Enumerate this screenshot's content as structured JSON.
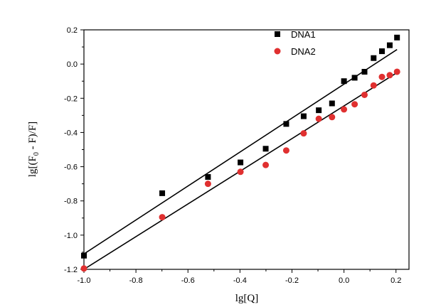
{
  "chart_data": {
    "type": "scatter",
    "xlabel": "lg[Q]",
    "ylabel": "lg[(F0 - F)/F]",
    "ylabel_parts": {
      "pre": "lg[(F",
      "sub": "0",
      "post": " - F)/F]"
    },
    "xlim": [
      -1.0,
      0.25
    ],
    "ylim": [
      -1.2,
      0.2
    ],
    "x_ticks": [
      "-1.0",
      "-0.8",
      "-0.6",
      "-0.4",
      "-0.2",
      "0.0",
      "0.2"
    ],
    "y_ticks": [
      "-1.2",
      "-1.0",
      "-0.8",
      "-0.6",
      "-0.4",
      "-0.2",
      "0.0",
      "0.2"
    ],
    "grid": false,
    "legend": "top-right",
    "series": [
      {
        "name": "DNA1",
        "color": "#000000",
        "marker": "square",
        "x": [
          -1.0,
          -0.699,
          -0.523,
          -0.398,
          -0.301,
          -0.222,
          -0.155,
          -0.097,
          -0.046,
          0.0,
          0.041,
          0.079,
          0.114,
          0.146,
          0.176,
          0.204
        ],
        "y": [
          -1.12,
          -0.755,
          -0.66,
          -0.575,
          -0.495,
          -0.35,
          -0.305,
          -0.27,
          -0.23,
          -0.1,
          -0.08,
          -0.045,
          0.035,
          0.075,
          0.11,
          0.155
        ],
        "fit": {
          "x": [
            -1.0,
            0.204
          ],
          "y": [
            -1.11,
            0.085
          ]
        }
      },
      {
        "name": "DNA2",
        "color": "#e03030",
        "marker": "circle",
        "x": [
          -1.0,
          -0.699,
          -0.523,
          -0.398,
          -0.301,
          -0.222,
          -0.155,
          -0.097,
          -0.046,
          0.0,
          0.041,
          0.079,
          0.114,
          0.146,
          0.176,
          0.204
        ],
        "y": [
          -1.195,
          -0.895,
          -0.7,
          -0.63,
          -0.59,
          -0.505,
          -0.405,
          -0.32,
          -0.31,
          -0.265,
          -0.235,
          -0.18,
          -0.125,
          -0.075,
          -0.065,
          -0.045
        ],
        "fit": {
          "x": [
            -1.0,
            0.204
          ],
          "y": [
            -1.2,
            -0.05
          ]
        }
      }
    ]
  }
}
